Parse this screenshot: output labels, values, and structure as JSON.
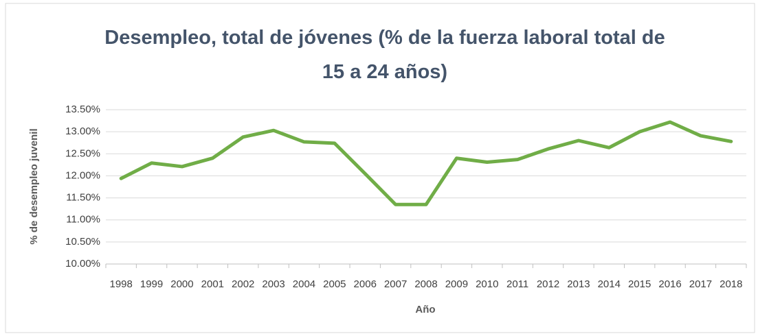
{
  "chart_data": {
    "type": "line",
    "title": "Desempleo, total de jóvenes (% de la fuerza laboral total de 15 a 24 años)",
    "x_label": "Año",
    "y_label": "% de desempleo juvenil",
    "categories": [
      "1998",
      "1999",
      "2000",
      "2001",
      "2002",
      "2003",
      "2004",
      "2005",
      "2006",
      "2007",
      "2008",
      "2009",
      "2010",
      "2011",
      "2012",
      "2013",
      "2014",
      "2015",
      "2016",
      "2017",
      "2018"
    ],
    "series": [
      {
        "name": "Desempleo juvenil",
        "color": "#70ad47",
        "values": [
          11.94,
          12.29,
          12.21,
          12.4,
          12.88,
          13.03,
          12.77,
          12.74,
          12.05,
          11.35,
          11.35,
          12.4,
          12.31,
          12.37,
          12.61,
          12.8,
          12.64,
          13.0,
          13.22,
          12.91,
          12.78
        ]
      }
    ],
    "ylim": [
      10,
      13.5
    ],
    "yticks": [
      {
        "value": 10,
        "label": "10.00%"
      },
      {
        "value": 10.5,
        "label": "10.50%"
      },
      {
        "value": 11,
        "label": "11.00%"
      },
      {
        "value": 11.5,
        "label": "11.50%"
      },
      {
        "value": 12,
        "label": "12.00%"
      },
      {
        "value": 12.5,
        "label": "12.50%"
      },
      {
        "value": 13,
        "label": "13.00%"
      },
      {
        "value": 13.5,
        "label": "13.50%"
      }
    ],
    "grid": true
  }
}
